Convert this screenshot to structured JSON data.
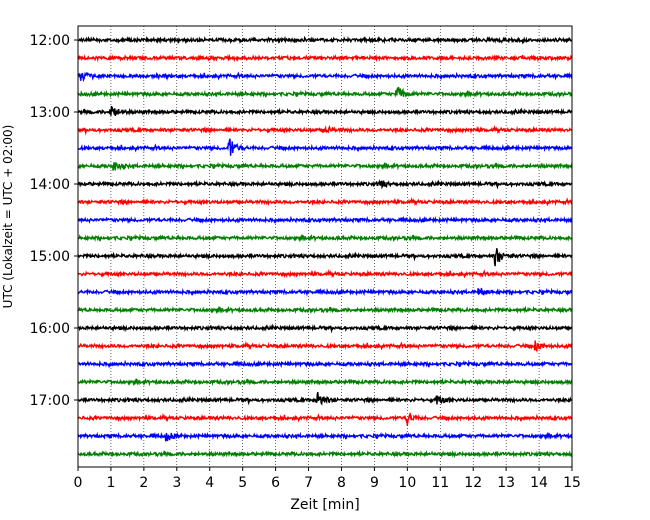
{
  "chart_data": {
    "type": "line",
    "subtype": "helicorder",
    "xlabel": "Zeit  [min]",
    "ylabel": "UTC (Lokalzeit = UTC + 02:00)",
    "xlim": [
      0,
      15
    ],
    "x_ticks": [
      "0",
      "1",
      "2",
      "3",
      "4",
      "5",
      "6",
      "7",
      "8",
      "9",
      "10",
      "11",
      "12",
      "13",
      "14",
      "15"
    ],
    "y_ticks": [
      "12:00",
      "13:00",
      "14:00",
      "15:00",
      "16:00",
      "17:00"
    ],
    "trace_start_times": [
      "12:00",
      "12:15",
      "12:30",
      "12:45",
      "13:00",
      "13:15",
      "13:30",
      "13:45",
      "14:00",
      "14:15",
      "14:30",
      "14:45",
      "15:00",
      "15:15",
      "15:30",
      "15:45",
      "16:00",
      "16:15",
      "16:30",
      "16:45",
      "17:00",
      "17:15",
      "17:30",
      "17:45"
    ],
    "trace_colors": [
      "#000000",
      "#ff0000",
      "#0000ff",
      "#008000"
    ],
    "grid": "vertical dotted",
    "events": [
      {
        "trace": "12:30",
        "minute": 0.1,
        "amplitude": 0.5
      },
      {
        "trace": "12:45",
        "minute": 9.7,
        "amplitude": 0.9
      },
      {
        "trace": "13:00",
        "minute": 1.0,
        "amplitude": 0.8
      },
      {
        "trace": "13:15",
        "minute": 7.5,
        "amplitude": 0.35
      },
      {
        "trace": "13:30",
        "minute": 4.6,
        "amplitude": 1.1
      },
      {
        "trace": "13:45",
        "minute": 1.1,
        "amplitude": 0.5
      },
      {
        "trace": "14:00",
        "minute": 9.2,
        "amplitude": 0.3
      },
      {
        "trace": "15:00",
        "minute": 12.7,
        "amplitude": 1.0
      },
      {
        "trace": "15:30",
        "minute": 12.2,
        "amplitude": 0.45
      },
      {
        "trace": "16:15",
        "minute": 13.9,
        "amplitude": 0.5
      },
      {
        "trace": "17:00",
        "minute": 7.3,
        "amplitude": 0.95
      },
      {
        "trace": "17:00",
        "minute": 10.9,
        "amplitude": 0.6
      },
      {
        "trace": "17:15",
        "minute": 10.0,
        "amplitude": 0.75
      },
      {
        "trace": "17:30",
        "minute": 2.7,
        "amplitude": 0.45
      }
    ]
  }
}
